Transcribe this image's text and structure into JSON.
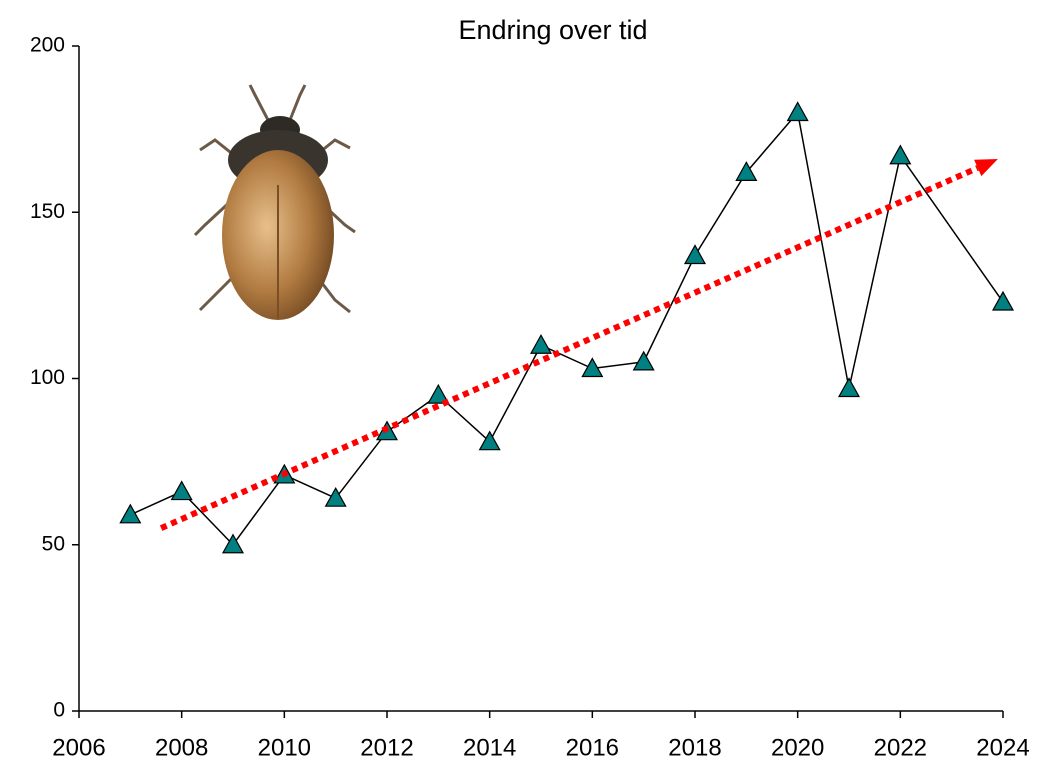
{
  "chart_data": {
    "type": "line",
    "title": "Endring over tid",
    "x": [
      2007,
      2008,
      2009,
      2010,
      2011,
      2012,
      2013,
      2014,
      2015,
      2016,
      2017,
      2018,
      2019,
      2020,
      2021,
      2022,
      2024
    ],
    "series": [
      {
        "color": "#008080",
        "values": [
          59,
          66,
          50,
          71,
          64,
          84,
          95,
          81,
          110,
          103,
          105,
          137,
          162,
          180,
          97,
          167,
          123
        ]
      }
    ],
    "trendline": {
      "x": [
        2007.6,
        2023.9
      ],
      "values": [
        55,
        166
      ],
      "color": "#ff0000"
    },
    "xlim": [
      2006,
      2024
    ],
    "xticks": [
      2006,
      2008,
      2010,
      2012,
      2014,
      2016,
      2018,
      2020,
      2022,
      2024
    ],
    "ylim": [
      0,
      200
    ],
    "yticks": [
      0,
      50,
      100,
      150,
      200
    ],
    "grid": false
  }
}
